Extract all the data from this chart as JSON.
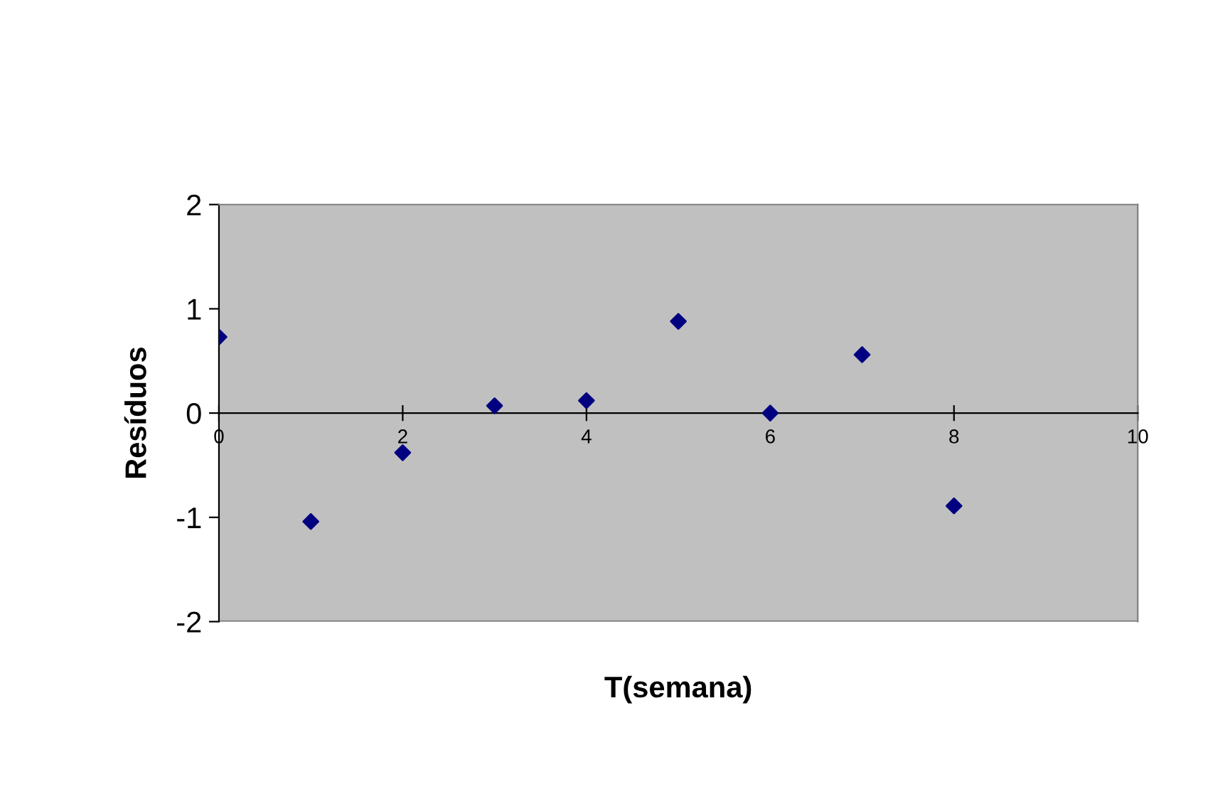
{
  "chart_data": {
    "type": "scatter",
    "xlabel": "T(semana)",
    "ylabel": "Resíduos",
    "x": [
      0,
      1,
      2,
      3,
      4,
      5,
      6,
      7,
      8
    ],
    "series": [
      {
        "color": "#000080",
        "values": [
          0.73,
          -1.04,
          -0.38,
          0.07,
          0.12,
          0.88,
          0.0,
          0.56,
          -0.89
        ]
      }
    ],
    "xlim": [
      0,
      10
    ],
    "xticks": [
      0,
      2,
      4,
      6,
      8,
      10
    ],
    "ylim": [
      -2,
      2
    ],
    "yticks": [
      -2,
      -1,
      0,
      1,
      2
    ],
    "marker": "diamond",
    "grid": false,
    "legend": false
  }
}
